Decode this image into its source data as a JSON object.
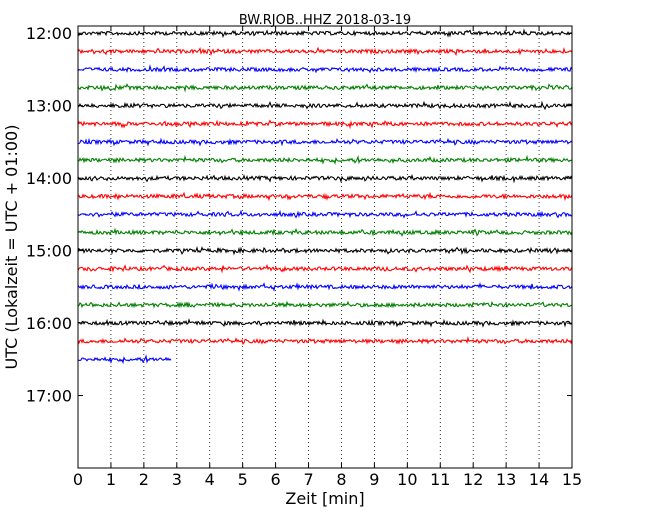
{
  "chart_data": {
    "type": "line",
    "title": "BW.RJOB..HHZ 2018-03-19",
    "xlabel": "Zeit  [min]",
    "ylabel": "UTC (Lokalzeit = UTC + 01:00)",
    "xlim": [
      0,
      15
    ],
    "x_ticks": [
      "0",
      "1",
      "2",
      "3",
      "4",
      "5",
      "6",
      "7",
      "8",
      "9",
      "10",
      "11",
      "12",
      "13",
      "14",
      "15"
    ],
    "y_ticks": [
      "12:00",
      "13:00",
      "14:00",
      "15:00",
      "16:00",
      "17:00"
    ],
    "ylim_start": "11:54",
    "ylim_end": "18:00",
    "trace_interval_min": 15,
    "vertical_grid": "dotted",
    "trace_colors": [
      "#000000",
      "#ff0000",
      "#0000ff",
      "#008000"
    ],
    "series": [
      {
        "start": "12:00",
        "color": "#000000",
        "end_min": 15
      },
      {
        "start": "12:15",
        "color": "#ff0000",
        "end_min": 15
      },
      {
        "start": "12:30",
        "color": "#0000ff",
        "end_min": 15
      },
      {
        "start": "12:45",
        "color": "#008000",
        "end_min": 15
      },
      {
        "start": "13:00",
        "color": "#000000",
        "end_min": 15
      },
      {
        "start": "13:15",
        "color": "#ff0000",
        "end_min": 15
      },
      {
        "start": "13:30",
        "color": "#0000ff",
        "end_min": 15
      },
      {
        "start": "13:45",
        "color": "#008000",
        "end_min": 15
      },
      {
        "start": "14:00",
        "color": "#000000",
        "end_min": 15
      },
      {
        "start": "14:15",
        "color": "#ff0000",
        "end_min": 15
      },
      {
        "start": "14:30",
        "color": "#0000ff",
        "end_min": 15
      },
      {
        "start": "14:45",
        "color": "#008000",
        "end_min": 15
      },
      {
        "start": "15:00",
        "color": "#000000",
        "end_min": 15
      },
      {
        "start": "15:15",
        "color": "#ff0000",
        "end_min": 15
      },
      {
        "start": "15:30",
        "color": "#0000ff",
        "end_min": 15
      },
      {
        "start": "15:45",
        "color": "#008000",
        "end_min": 15
      },
      {
        "start": "16:00",
        "color": "#000000",
        "end_min": 15
      },
      {
        "start": "16:15",
        "color": "#ff0000",
        "end_min": 15
      },
      {
        "start": "16:30",
        "color": "#0000ff",
        "end_min": 2.85
      }
    ]
  }
}
